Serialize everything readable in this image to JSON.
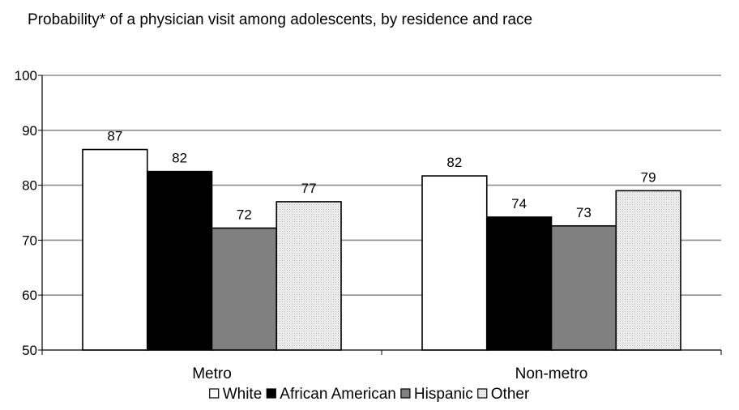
{
  "chart_data": {
    "type": "bar",
    "title": "Probability* of a physician visit among adolescents, by residence and race",
    "xlabel": "",
    "ylabel": "",
    "categories": [
      "Metro",
      "Non-metro"
    ],
    "series": [
      {
        "name": "White",
        "values": [
          86.5,
          81.7
        ],
        "labels": [
          "87",
          "82"
        ],
        "color": "#ffffff",
        "pattern": "none"
      },
      {
        "name": "African American",
        "values": [
          82.5,
          74.2
        ],
        "labels": [
          "82",
          "74"
        ],
        "color": "#000000",
        "pattern": "none"
      },
      {
        "name": "Hispanic",
        "values": [
          72.2,
          72.6
        ],
        "labels": [
          "72",
          "73"
        ],
        "color": "#808080",
        "pattern": "none"
      },
      {
        "name": "Other",
        "values": [
          77.0,
          79.0
        ],
        "labels": [
          "77",
          "79"
        ],
        "color": "#ebebeb",
        "pattern": "dotted"
      }
    ],
    "ylim": [
      50,
      100
    ],
    "yticks": [
      50,
      60,
      70,
      80,
      90,
      100
    ],
    "grid": true,
    "legend_position": "bottom"
  }
}
